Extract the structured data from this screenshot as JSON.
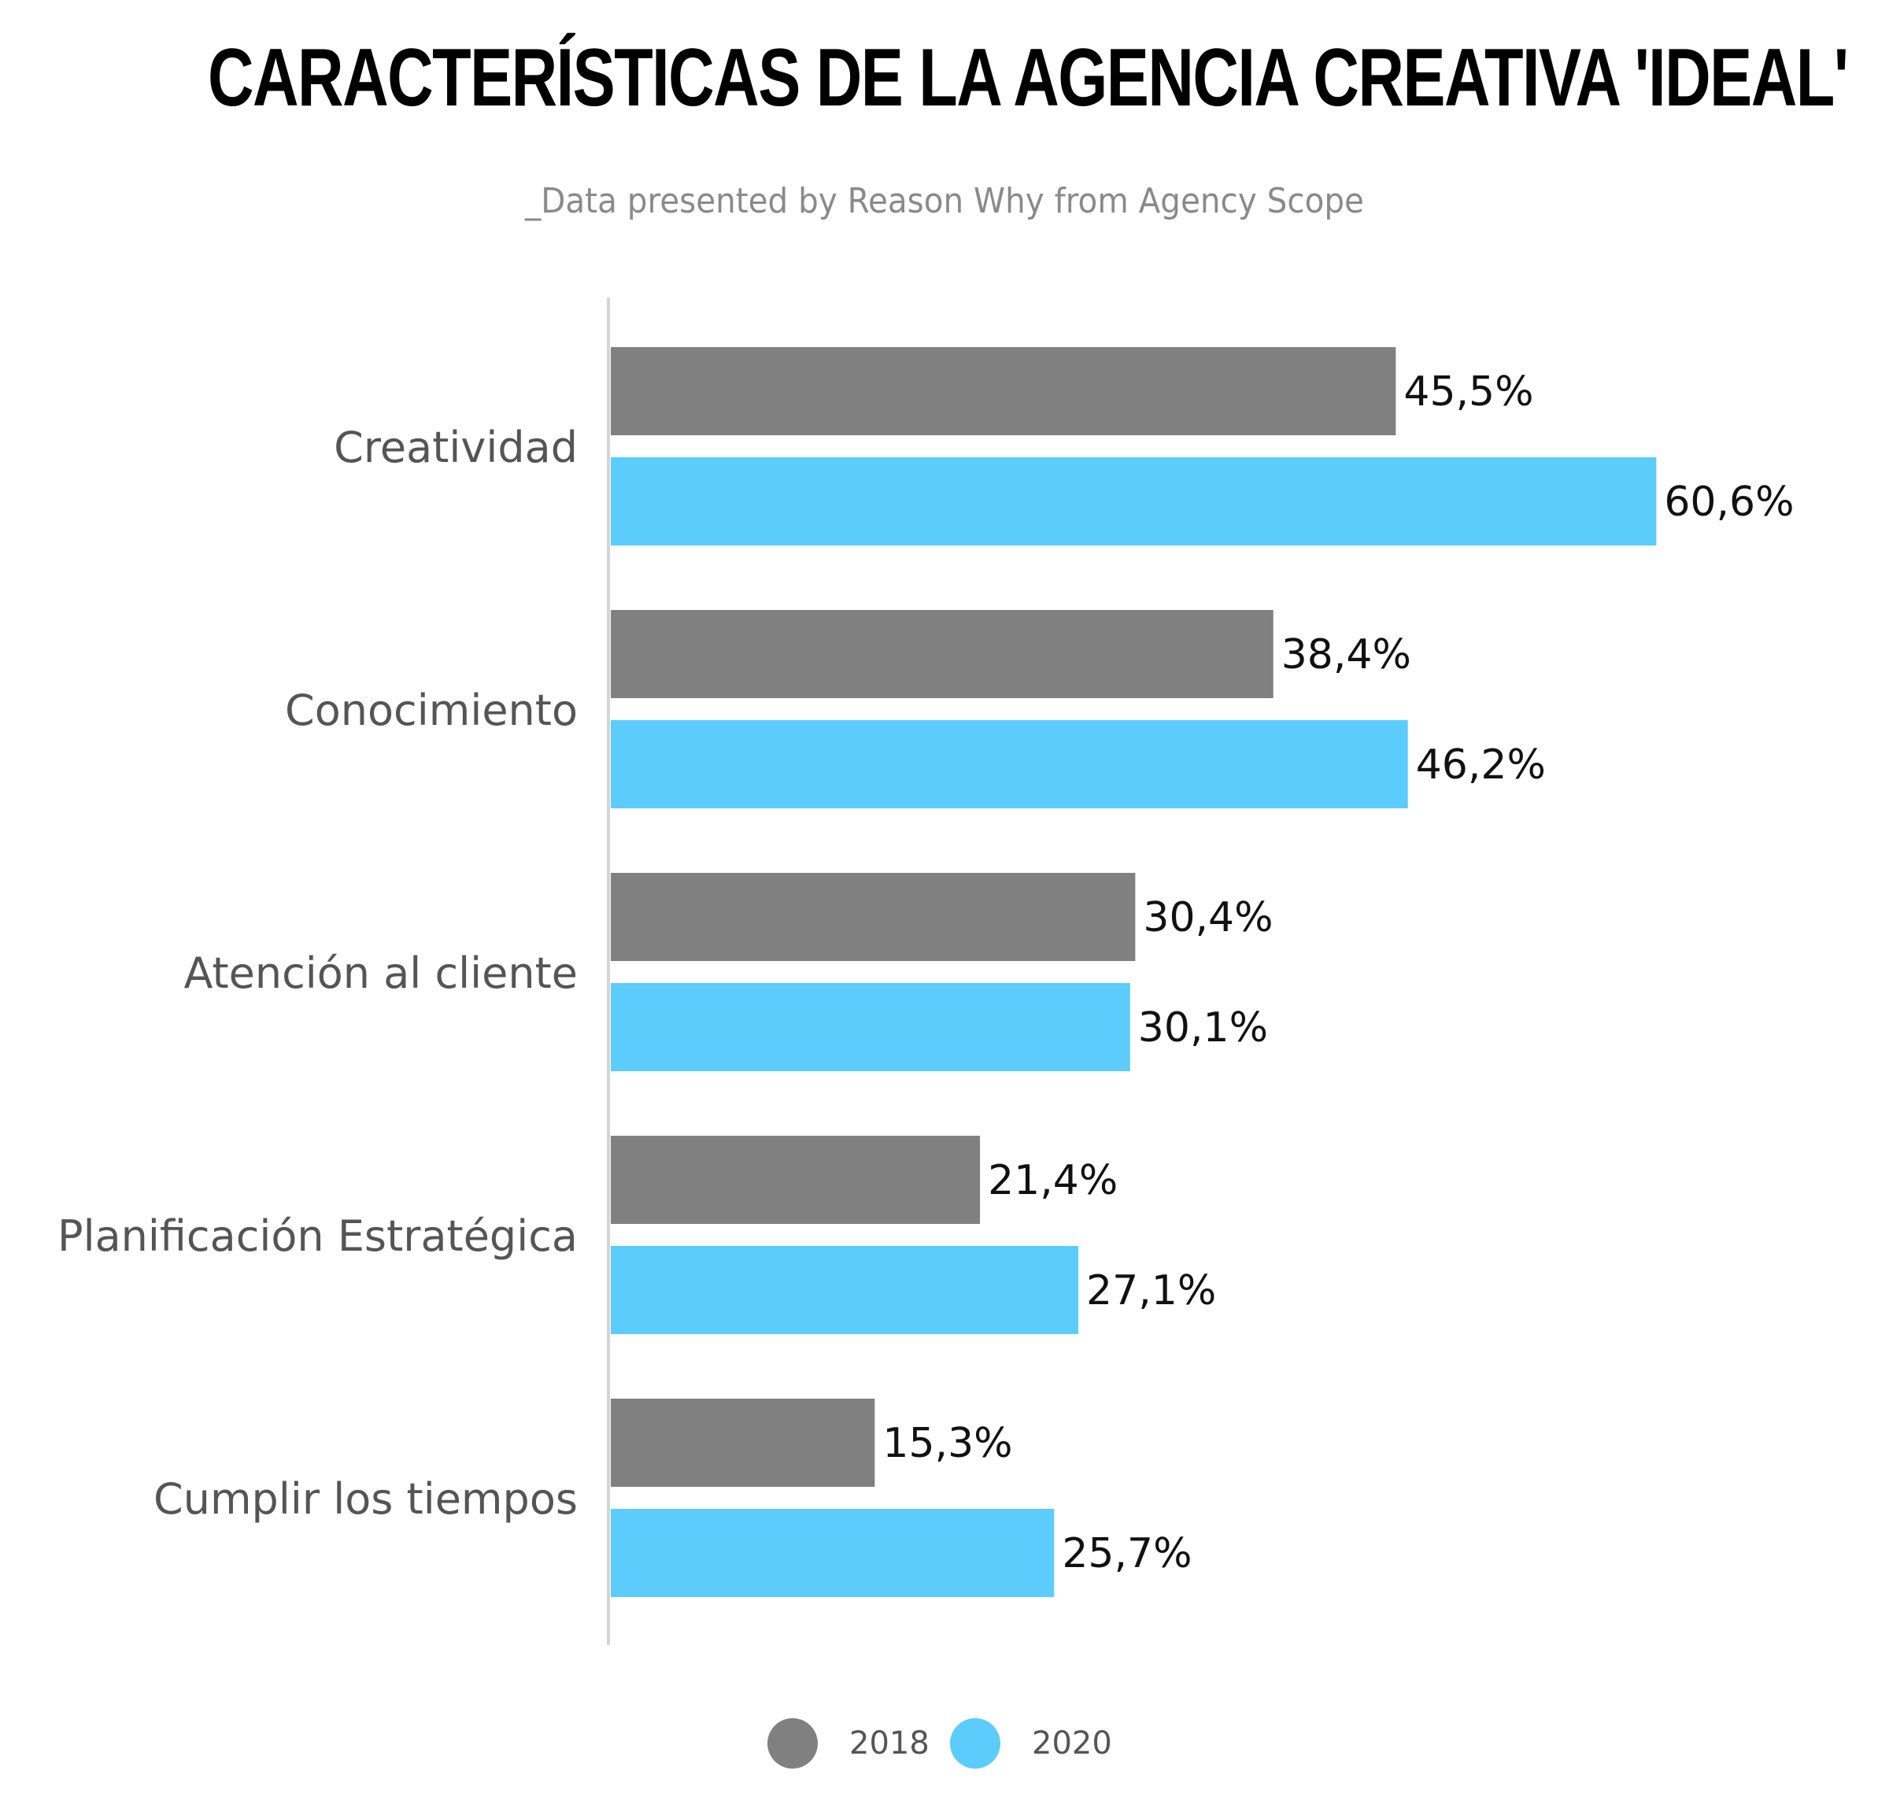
{
  "header": {
    "title": "CARACTERÍSTICAS DE LA AGENCIA CREATIVA 'IDEAL'",
    "subtitle": "_Data presented by Reason Why from Agency Scope"
  },
  "colors": {
    "series_2018": "#808080",
    "series_2020": "#5bccfb",
    "axis": "#d4d4d4",
    "category_label": "#555555",
    "value_label": "#111111"
  },
  "chart_data": {
    "type": "bar",
    "orientation": "horizontal",
    "categories": [
      "Creatividad",
      "Conocimiento",
      "Atención al cliente",
      "Planificación Estratégica",
      "Cumplir los tiempos"
    ],
    "series": [
      {
        "name": "2018",
        "values": [
          45.5,
          38.4,
          30.4,
          21.4,
          15.3
        ],
        "labels": [
          "45,5%",
          "38,4%",
          "30,4%",
          "21,4%",
          "15,3%"
        ]
      },
      {
        "name": "2020",
        "values": [
          60.6,
          46.2,
          30.1,
          27.1,
          25.7
        ],
        "labels": [
          "60,6%",
          "46,2%",
          "30,1%",
          "27,1%",
          "25,7%"
        ]
      }
    ],
    "xlim": [
      0,
      62
    ],
    "grid": false,
    "legend_position": "bottom-center"
  },
  "legend": {
    "items": [
      {
        "label": "2018"
      },
      {
        "label": "2020"
      }
    ]
  }
}
